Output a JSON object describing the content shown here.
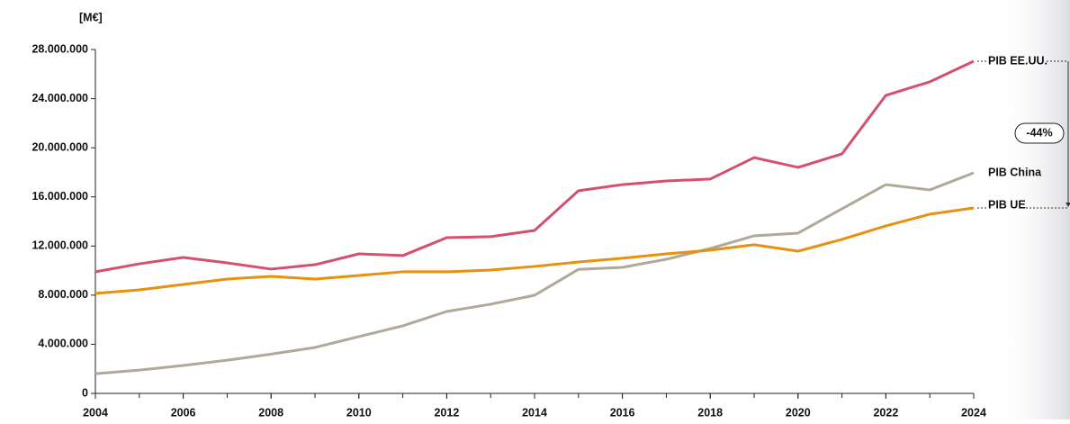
{
  "chart_data": {
    "type": "line",
    "y_label": "[M€]",
    "annotation": "-44%",
    "x": [
      2004,
      2005,
      2006,
      2007,
      2008,
      2009,
      2010,
      2011,
      2012,
      2013,
      2014,
      2015,
      2016,
      2017,
      2018,
      2019,
      2020,
      2021,
      2022,
      2023,
      2024
    ],
    "xlim": [
      2004,
      2024
    ],
    "xticks": [
      2004,
      2006,
      2008,
      2010,
      2012,
      2014,
      2016,
      2018,
      2020,
      2022,
      2024
    ],
    "ylim": [
      0,
      28000000
    ],
    "yticks": [
      {
        "value": 0,
        "label": "0"
      },
      {
        "value": 4000000,
        "label": "4.000.000"
      },
      {
        "value": 8000000,
        "label": "8.000.000"
      },
      {
        "value": 12000000,
        "label": "12.000.000"
      },
      {
        "value": 16000000,
        "label": "16.000.000"
      },
      {
        "value": 20000000,
        "label": "20.000.000"
      },
      {
        "value": 24000000,
        "label": "24.000.000"
      },
      {
        "value": 28000000,
        "label": "28.000.000"
      }
    ],
    "grid": false,
    "series": [
      {
        "name": "PIB EE.UU.",
        "color": "#d4506e",
        "values": [
          9900000,
          10550000,
          11070000,
          10630000,
          10120000,
          10480000,
          11360000,
          11220000,
          12680000,
          12760000,
          13270000,
          16500000,
          17000000,
          17300000,
          17450000,
          19200000,
          18400000,
          19500000,
          24270000,
          25370000,
          27050000
        ]
      },
      {
        "name": "PIB China",
        "color": "#b0a898",
        "values": [
          1600000,
          1900000,
          2270000,
          2700000,
          3200000,
          3740000,
          4620000,
          5500000,
          6670000,
          7260000,
          7990000,
          10100000,
          10260000,
          10920000,
          11800000,
          12830000,
          13050000,
          15030000,
          17000000,
          16570000,
          17960000
        ]
      },
      {
        "name": "PIB UE",
        "color": "#e8900f",
        "values": [
          8140000,
          8430000,
          8870000,
          9310000,
          9530000,
          9310000,
          9600000,
          9900000,
          9900000,
          10040000,
          10340000,
          10700000,
          11000000,
          11360000,
          11660000,
          12100000,
          11580000,
          12540000,
          13640000,
          14590000,
          15100000
        ]
      }
    ]
  }
}
